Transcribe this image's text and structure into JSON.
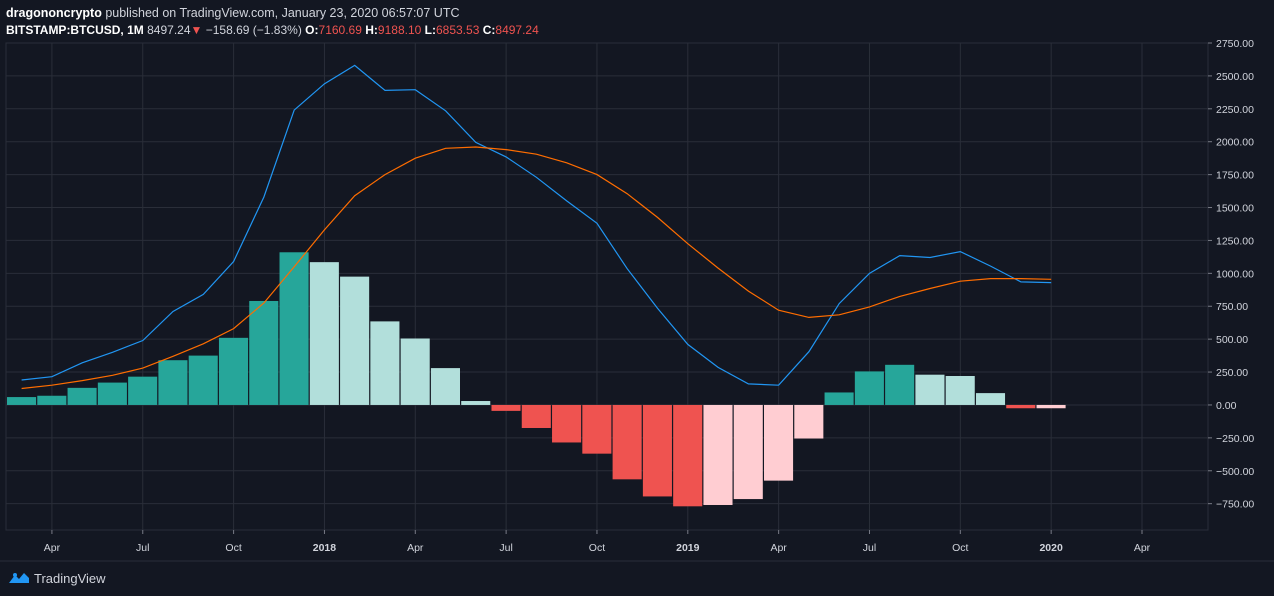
{
  "header": {
    "author": "dragononcrypto",
    "published_text": "published on TradingView.com, January 23, 2020 06:57:07 UTC",
    "symbol": "BITSTAMP:BTCUSD, 1M",
    "price": "8497.24",
    "down_arrow": "▼",
    "change": "−158.69 (−1.83%)",
    "open_label": "O:",
    "open": "7160.69",
    "high_label": "H:",
    "high": "9188.10",
    "low_label": "L:",
    "low": "6853.53",
    "close_label": "C:",
    "close": "8497.24"
  },
  "footer": {
    "brand": "TradingView",
    "logo_icon": "tradingview-logo-icon"
  },
  "colors": {
    "background": "#131722",
    "grid": "#2a2e39",
    "text": "#d1d4dc",
    "macd_line": "#2196f3",
    "signal_line": "#ff6d00",
    "hist_up_strong": "#26a69a",
    "hist_up_weak": "#b2dfdb",
    "hist_down_strong": "#ef5350",
    "hist_down_weak": "#ffcdd2",
    "negative": "#ef5350"
  },
  "chart_data": {
    "type": "bar",
    "indicator": "MACD",
    "x_start": "2017-03",
    "ylim": [
      -950,
      2750
    ],
    "yticks": [
      -750,
      -500,
      -250,
      0,
      250,
      500,
      750,
      1000,
      1250,
      1500,
      1750,
      2000,
      2250,
      2500,
      2750
    ],
    "ytick_labels": [
      "−750.00",
      "−500.00",
      "−250.00",
      "0.00",
      "250.00",
      "500.00",
      "750.00",
      "1000.00",
      "1250.00",
      "1500.00",
      "1750.00",
      "2000.00",
      "2250.00",
      "2500.00",
      "2750.00"
    ],
    "xticks": [
      {
        "month_index": 1,
        "label": "Apr",
        "bold": false
      },
      {
        "month_index": 4,
        "label": "Jul",
        "bold": false
      },
      {
        "month_index": 7,
        "label": "Oct",
        "bold": false
      },
      {
        "month_index": 10,
        "label": "2018",
        "bold": true
      },
      {
        "month_index": 13,
        "label": "Apr",
        "bold": false
      },
      {
        "month_index": 16,
        "label": "Jul",
        "bold": false
      },
      {
        "month_index": 19,
        "label": "Oct",
        "bold": false
      },
      {
        "month_index": 22,
        "label": "2019",
        "bold": true
      },
      {
        "month_index": 25,
        "label": "Apr",
        "bold": false
      },
      {
        "month_index": 28,
        "label": "Jul",
        "bold": false
      },
      {
        "month_index": 31,
        "label": "Oct",
        "bold": false
      },
      {
        "month_index": 34,
        "label": "2020",
        "bold": true
      },
      {
        "month_index": 37,
        "label": "Apr",
        "bold": false
      }
    ],
    "grid": true,
    "series": [
      {
        "kind": "histogram",
        "values": [
          60,
          70,
          130,
          170,
          215,
          340,
          375,
          510,
          790,
          1160,
          1085,
          975,
          635,
          505,
          280,
          30,
          -45,
          -175,
          -285,
          -370,
          -565,
          -695,
          -770,
          -760,
          -715,
          -575,
          -255,
          95,
          255,
          305,
          230,
          220,
          90,
          -25,
          -25
        ],
        "styles": [
          "s",
          "s",
          "s",
          "s",
          "s",
          "s",
          "s",
          "s",
          "s",
          "s",
          "w",
          "w",
          "w",
          "w",
          "w",
          "w",
          "s",
          "s",
          "s",
          "s",
          "s",
          "s",
          "s",
          "w",
          "w",
          "w",
          "w",
          "s",
          "s",
          "s",
          "w",
          "w",
          "w",
          "s",
          "w"
        ]
      },
      {
        "kind": "line",
        "color_key": "macd_line",
        "values": [
          190,
          215,
          320,
          400,
          490,
          710,
          840,
          1090,
          1580,
          2240,
          2440,
          2580,
          2390,
          2395,
          2235,
          1995,
          1885,
          1730,
          1550,
          1380,
          1035,
          735,
          460,
          285,
          160,
          150,
          405,
          770,
          1000,
          1135,
          1120,
          1165,
          1055,
          935,
          930
        ]
      },
      {
        "kind": "line",
        "color_key": "signal_line",
        "values": [
          125,
          150,
          185,
          225,
          280,
          370,
          465,
          580,
          775,
          1050,
          1330,
          1590,
          1750,
          1875,
          1950,
          1960,
          1940,
          1905,
          1840,
          1750,
          1605,
          1425,
          1225,
          1040,
          865,
          720,
          665,
          685,
          745,
          825,
          885,
          940,
          960,
          960,
          955
        ]
      }
    ]
  }
}
